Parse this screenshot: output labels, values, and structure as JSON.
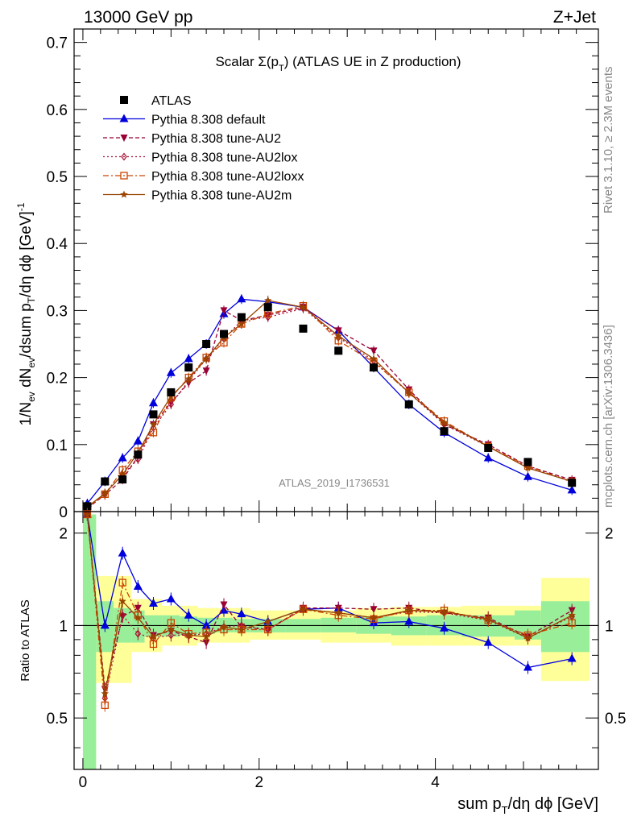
{
  "header": {
    "left": "13000 GeV pp",
    "right": "Z+Jet"
  },
  "side": {
    "rivet": "Rivet 3.1.10, ≥ 2.3M events",
    "mcplots": "mcplots.cern.ch [arXiv:1306.3436]"
  },
  "watermark": "ATLAS_2019_I1736531",
  "chart_data": [
    {
      "type": "scatter",
      "title": "Scalar Σ(pT) (ATLAS UE in Z production)",
      "title_main": "Scalar Σ(p",
      "title_sub": "T",
      "title_tail": ") (ATLAS UE in Z production)",
      "ylabel": "1/Nev dNev/dsum pT/dη dϕ [GeV]^-1",
      "xlim": [
        -0.1,
        5.85
      ],
      "ylim": [
        0,
        0.72
      ],
      "yticks": [
        "0",
        "0.1",
        "0.2",
        "0.3",
        "0.4",
        "0.5",
        "0.6",
        "0.7"
      ],
      "x": [
        0.05,
        0.25,
        0.45,
        0.625,
        0.8,
        1.0,
        1.2,
        1.4,
        1.6,
        1.8,
        2.1,
        2.5,
        2.9,
        3.3,
        3.7,
        4.1,
        4.6,
        5.05,
        5.55
      ],
      "series": [
        {
          "name": "ATLAS",
          "color": "#000000",
          "marker": "square-filled",
          "line": "none",
          "values": [
            0.008,
            0.045,
            0.048,
            0.085,
            0.145,
            0.178,
            0.215,
            0.25,
            0.265,
            0.29,
            0.305,
            0.273,
            0.24,
            0.215,
            0.16,
            0.12,
            0.095,
            0.074,
            0.043
          ]
        },
        {
          "name": "Pythia 8.308 default",
          "color": "#0000dd",
          "marker": "triangle-up-filled",
          "line": "solid",
          "values": [
            0.012,
            0.045,
            0.08,
            0.105,
            0.162,
            0.207,
            0.228,
            0.25,
            0.295,
            0.317,
            0.313,
            0.305,
            0.27,
            0.215,
            0.16,
            0.118,
            0.08,
            0.052,
            0.032
          ]
        },
        {
          "name": "Pythia 8.308 tune-AU2",
          "color": "#990033",
          "marker": "triangle-down-filled",
          "line": "dashed",
          "values": [
            0.005,
            0.025,
            0.048,
            0.082,
            0.13,
            0.163,
            0.192,
            0.21,
            0.3,
            0.285,
            0.293,
            0.305,
            0.27,
            0.24,
            0.182,
            0.13,
            0.1,
            0.068,
            0.047
          ]
        },
        {
          "name": "Pythia 8.308 tune-AU2lox",
          "color": "#aa1133",
          "marker": "diamond-open",
          "line": "dotted",
          "values": [
            0.005,
            0.027,
            0.055,
            0.078,
            0.125,
            0.16,
            0.195,
            0.228,
            0.258,
            0.285,
            0.29,
            0.303,
            0.26,
            0.225,
            0.177,
            0.13,
            0.097,
            0.067,
            0.045
          ]
        },
        {
          "name": "Pythia 8.308 tune-AU2loxx",
          "color": "#cc4400",
          "marker": "square-open",
          "line": "dashdot",
          "values": [
            0.006,
            0.026,
            0.062,
            0.09,
            0.118,
            0.17,
            0.2,
            0.23,
            0.252,
            0.28,
            0.295,
            0.307,
            0.255,
            0.223,
            0.178,
            0.135,
            0.097,
            0.068,
            0.044
          ]
        },
        {
          "name": "Pythia 8.308 tune-AU2m",
          "color": "#994400",
          "marker": "star-filled",
          "line": "solid",
          "values": [
            0.007,
            0.027,
            0.055,
            0.088,
            0.13,
            0.172,
            0.198,
            0.228,
            0.26,
            0.28,
            0.315,
            0.305,
            0.262,
            0.228,
            0.177,
            0.133,
            0.097,
            0.065,
            0.045
          ]
        }
      ]
    },
    {
      "type": "scatter",
      "xlabel": "sum pT/dη dϕ [GeV]",
      "ylabel": "Ratio to ATLAS",
      "xlim": [
        -0.1,
        5.85
      ],
      "ylim": [
        0.34,
        2.35
      ],
      "xticks": [
        "0",
        "2",
        "4"
      ],
      "yticks": [
        "0.5",
        "1",
        "2"
      ],
      "bands": {
        "edges": [
          0.0,
          0.15,
          0.35,
          0.55,
          0.7,
          0.9,
          1.1,
          1.3,
          1.5,
          1.7,
          1.9,
          2.3,
          2.7,
          3.1,
          3.5,
          3.9,
          4.3,
          4.9,
          5.2,
          5.75
        ],
        "green_lo": [
          0.34,
          0.82,
          0.88,
          0.88,
          0.92,
          0.92,
          0.93,
          0.94,
          0.95,
          0.95,
          0.95,
          0.95,
          0.95,
          0.94,
          0.93,
          0.93,
          0.92,
          0.9,
          0.82
        ],
        "green_hi": [
          2.3,
          1.2,
          1.14,
          1.12,
          1.08,
          1.08,
          1.07,
          1.06,
          1.06,
          1.05,
          1.05,
          1.05,
          1.06,
          1.07,
          1.07,
          1.08,
          1.08,
          1.12,
          1.2
        ],
        "yellow_lo": [
          0.34,
          0.65,
          0.65,
          0.82,
          0.82,
          0.86,
          0.86,
          0.88,
          0.88,
          0.88,
          0.9,
          0.9,
          0.88,
          0.88,
          0.86,
          0.86,
          0.86,
          0.86,
          0.66
        ],
        "yellow_hi": [
          2.3,
          1.45,
          1.45,
          1.22,
          1.22,
          1.16,
          1.16,
          1.14,
          1.14,
          1.14,
          1.12,
          1.12,
          1.12,
          1.14,
          1.15,
          1.15,
          1.16,
          1.16,
          1.43
        ]
      },
      "series": [
        {
          "name": "Pythia 8.308 default",
          "values": [
            2.3,
            1.0,
            1.72,
            1.34,
            1.18,
            1.22,
            1.08,
            1.0,
            1.12,
            1.09,
            1.03,
            1.13,
            1.14,
            1.02,
            1.03,
            0.98,
            0.88,
            0.73,
            0.78
          ]
        },
        {
          "name": "Pythia 8.308 tune-AU2",
          "values": [
            2.3,
            0.62,
            1.07,
            1.14,
            0.93,
            0.96,
            0.92,
            0.88,
            1.17,
            0.99,
            0.97,
            1.14,
            1.14,
            1.13,
            1.14,
            1.1,
            1.06,
            0.92,
            1.12
          ]
        },
        {
          "name": "Pythia 8.308 tune-AU2lox",
          "values": [
            2.3,
            0.58,
            1.08,
            0.94,
            0.91,
            0.93,
            0.93,
            0.94,
            0.99,
            1.0,
            0.97,
            1.13,
            1.1,
            1.06,
            1.11,
            1.1,
            1.04,
            0.91,
            1.07
          ]
        },
        {
          "name": "Pythia 8.308 tune-AU2loxx",
          "values": [
            2.3,
            0.55,
            1.38,
            1.08,
            0.87,
            1.02,
            0.94,
            0.95,
            0.97,
            0.97,
            0.97,
            1.13,
            1.08,
            1.05,
            1.12,
            1.12,
            1.04,
            0.93,
            1.02
          ]
        },
        {
          "name": "Pythia 8.308 tune-AU2m",
          "values": [
            2.3,
            0.6,
            1.2,
            1.06,
            0.92,
            0.97,
            0.93,
            0.92,
            0.99,
            0.97,
            1.03,
            1.13,
            1.1,
            1.06,
            1.12,
            1.11,
            1.05,
            0.91,
            1.08
          ]
        }
      ]
    }
  ]
}
